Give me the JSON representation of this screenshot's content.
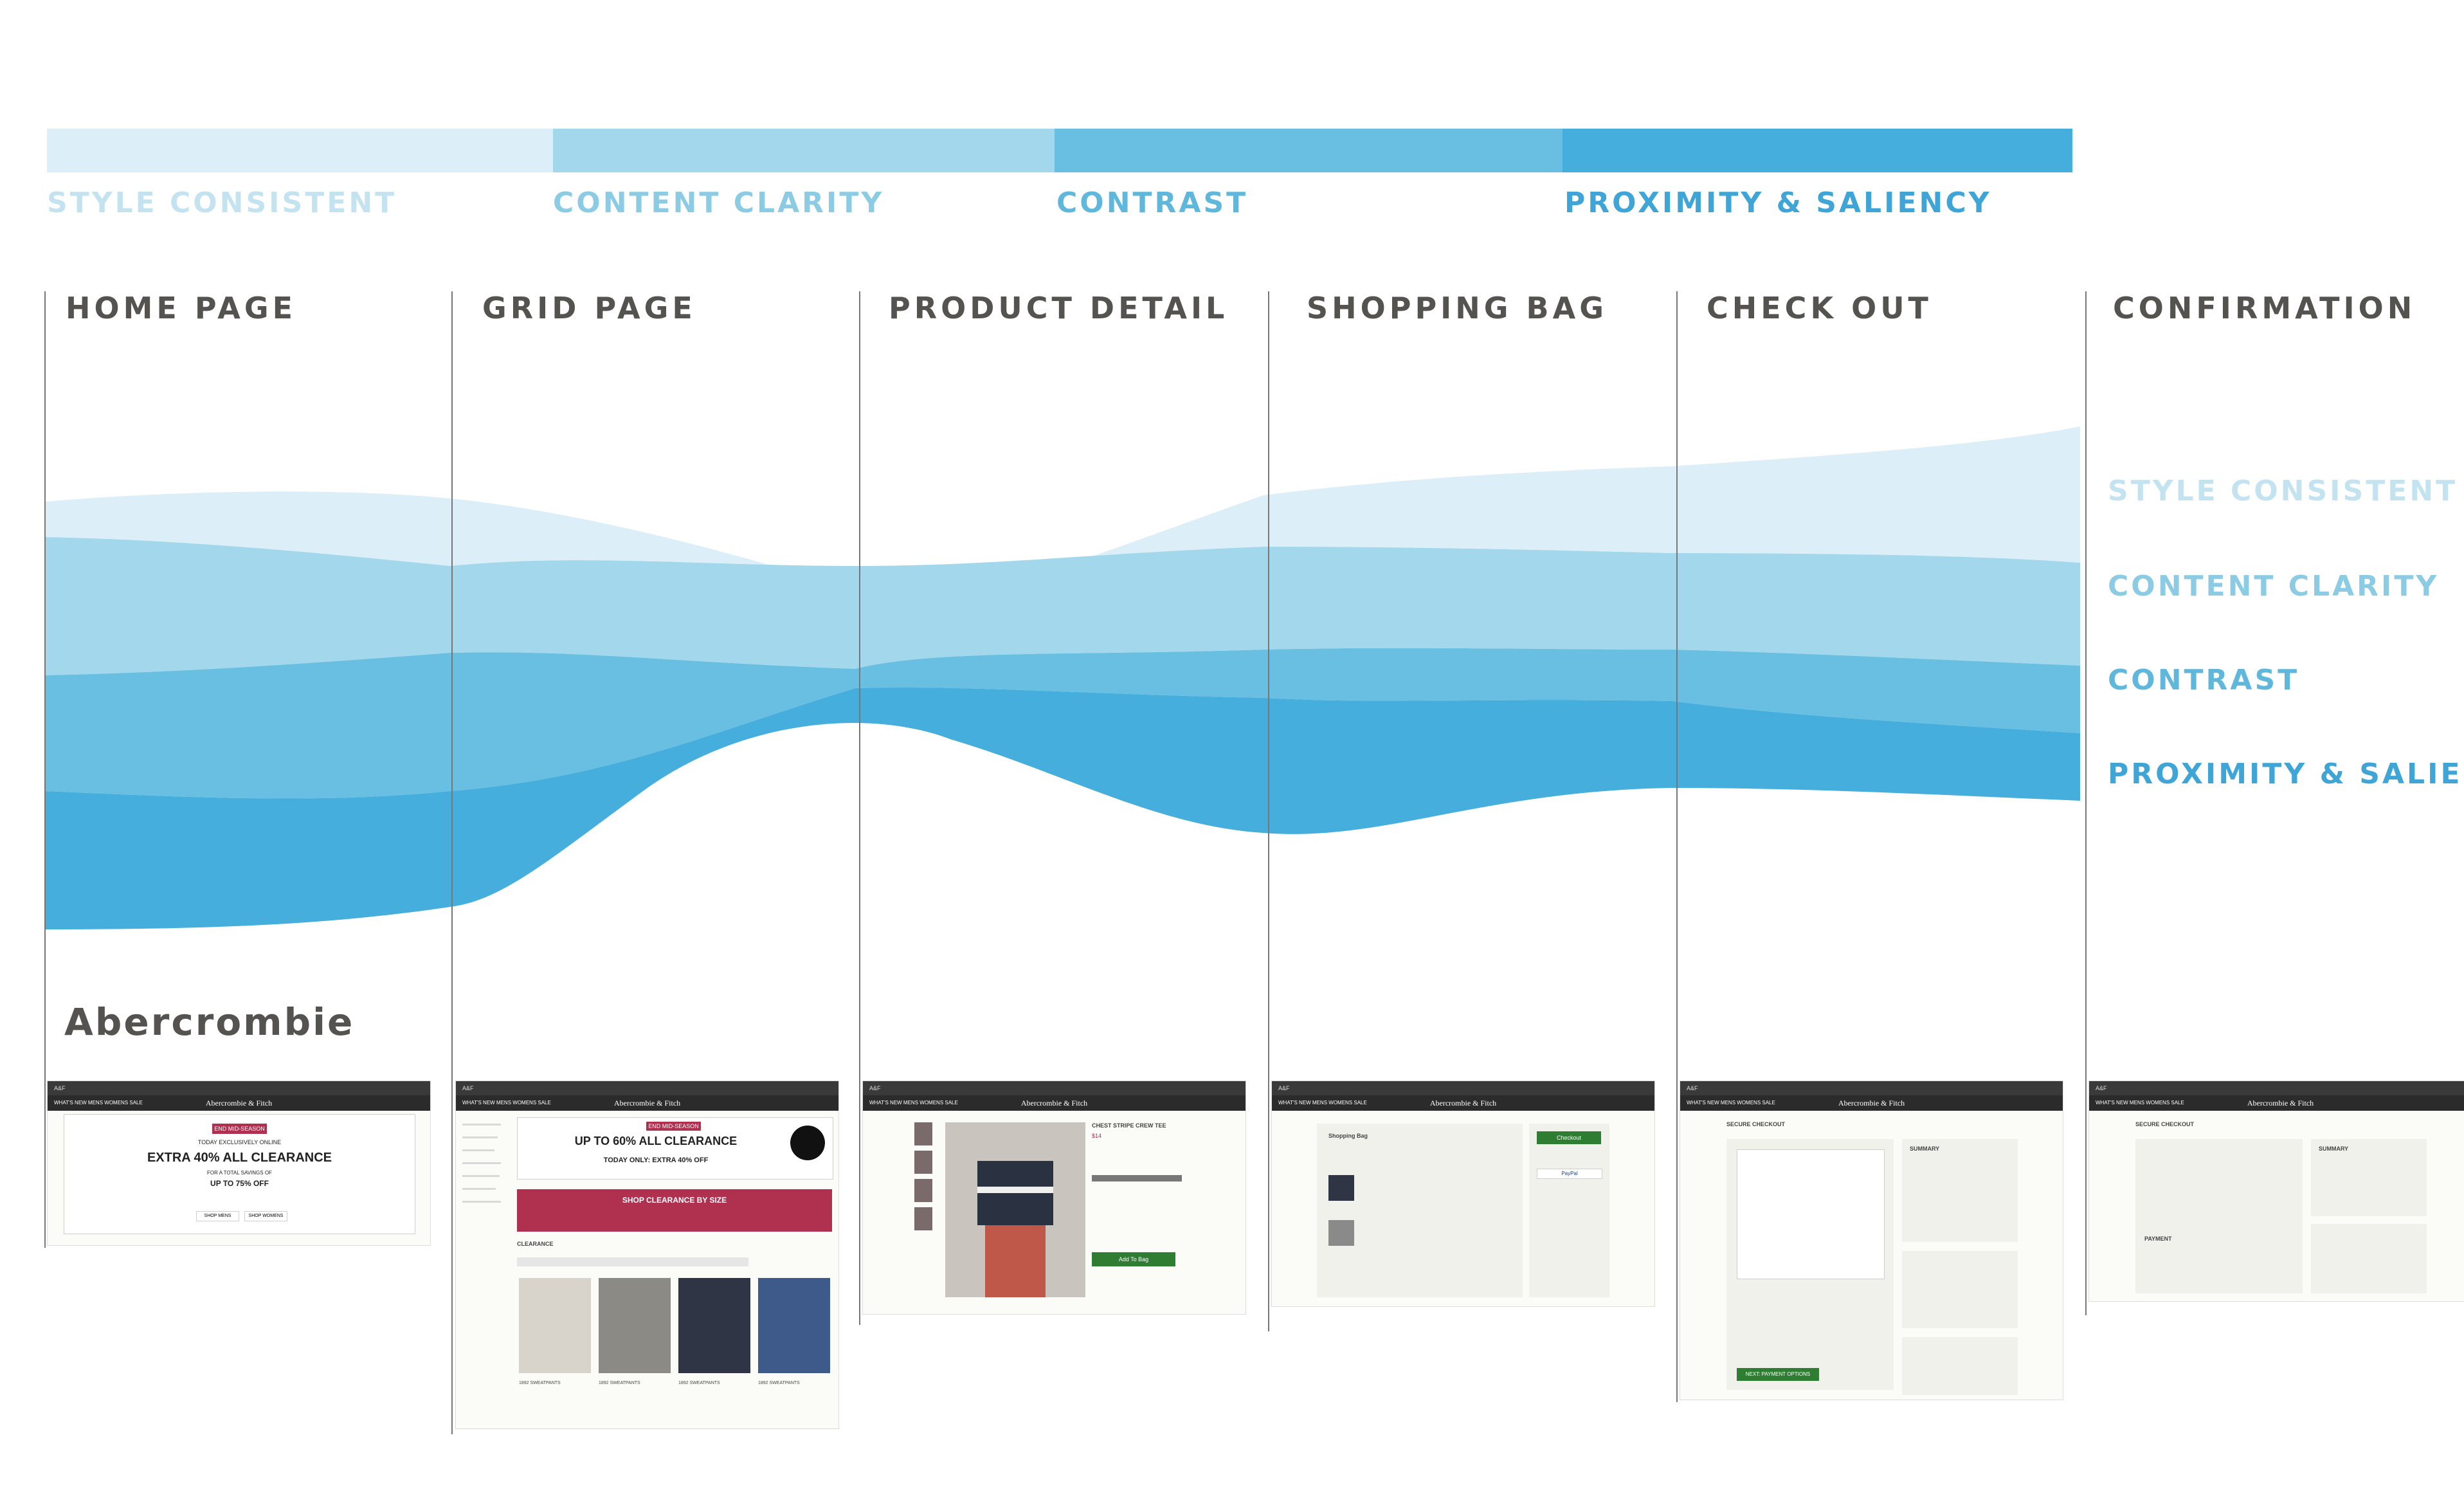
{
  "colors": {
    "style_consistent": "#dceff8",
    "content_clarity": "#a3d7eb",
    "contrast": "#68bfe2",
    "proximity_saliency": "#45aedc",
    "legend_text_style": "#c4e3f1",
    "legend_text_clarity": "#8bcbe3",
    "legend_text_contrast": "#5fb8dc",
    "legend_text_proximity": "#3ea5d6",
    "stage_text": "#555350",
    "divider": "#777777"
  },
  "legend": [
    {
      "key": "style_consistent",
      "label": "STYLE CONSISTENT"
    },
    {
      "key": "content_clarity",
      "label": "CONTENT CLARITY"
    },
    {
      "key": "contrast",
      "label": "CONTRAST"
    },
    {
      "key": "proximity_saliency",
      "label": "PROXIMITY & SALIENCY"
    }
  ],
  "stages": [
    "HOME PAGE",
    "GRID PAGE",
    "PRODUCT DETAIL",
    "SHOPPING BAG",
    "CHECK OUT",
    "CONFIRMATION"
  ],
  "end_labels": [
    "STYLE CONSISTENT",
    "CONTENT CLARITY",
    "CONTRAST",
    "PROXIMITY & SALIENCY"
  ],
  "brand": "Abercrombie",
  "thumbnails": {
    "site_name": "Abercrombie & Fitch",
    "nav_links": "WHAT'S NEW   MENS   WOMENS   SALE",
    "home": {
      "pill": "END MID-SEASON SALE",
      "line1": "TODAY EXCLUSIVELY ONLINE",
      "headline": "EXTRA 40% ALL CLEARANCE",
      "line2": "FOR A TOTAL SAVINGS OF",
      "line3": "UP TO 75% OFF",
      "btn1": "SHOP MENS",
      "btn2": "SHOP WOMENS"
    },
    "grid": {
      "pill": "END MID-SEASON SALE",
      "headline": "UP TO 60% ALL CLEARANCE",
      "line": "TODAY ONLY: EXTRA 40% OFF",
      "banner": "SHOP CLEARANCE BY SIZE",
      "section": "CLEARANCE",
      "items": [
        "1892 SWEATPANTS",
        "1892 SWEATPANTS",
        "1892 SWEATPANTS",
        "1892 SWEATPANTS"
      ]
    },
    "detail": {
      "title": "CHEST STRIPE CREW TEE",
      "price": "$14",
      "button": "Add To Bag"
    },
    "bag": {
      "title": "Shopping Bag",
      "checkout": "Checkout",
      "paypal": "PayPal"
    },
    "checkout": {
      "title": "SECURE CHECKOUT",
      "summary": "SUMMARY",
      "button": "NEXT: PAYMENT OPTIONS"
    },
    "confirmation": {
      "title": "SECURE CHECKOUT",
      "summary": "SUMMARY",
      "payment": "PAYMENT"
    }
  }
}
